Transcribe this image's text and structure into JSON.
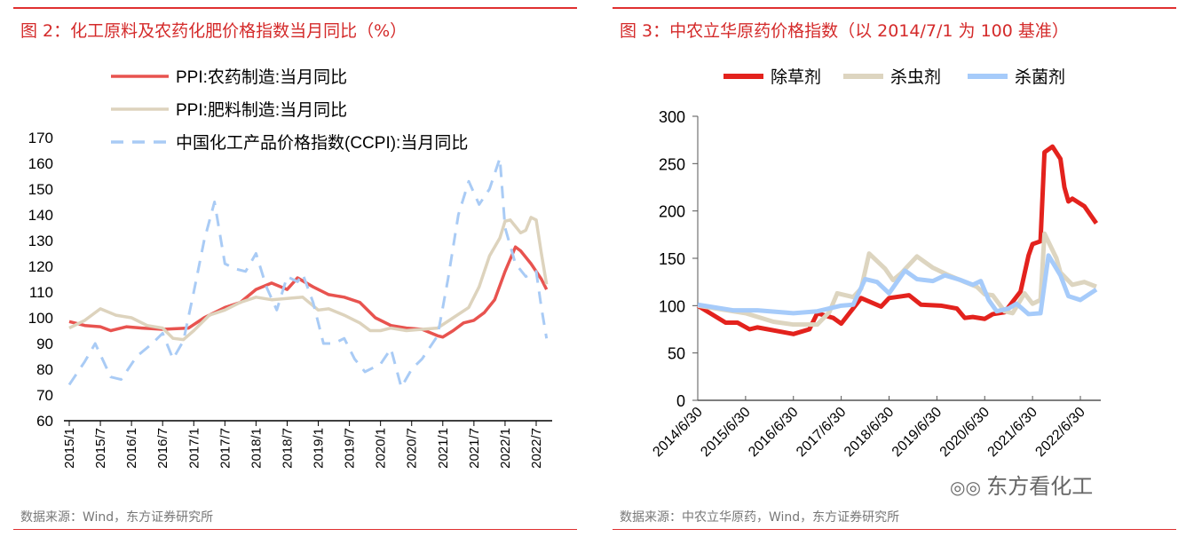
{
  "chart_data": [
    {
      "type": "line",
      "title": "图 2：化工原料及农药化肥价格指数当月同比（%）",
      "source": "数据来源：Wind，东方证券研究所",
      "ylim": [
        60,
        170
      ],
      "yticks": [
        60,
        70,
        80,
        90,
        100,
        110,
        120,
        130,
        140,
        150,
        160,
        170
      ],
      "xticks": [
        "2015/1",
        "2015/7",
        "2016/1",
        "2016/7",
        "2017/1",
        "2017/7",
        "2018/1",
        "2018/7",
        "2019/1",
        "2019/7",
        "2020/1",
        "2020/7",
        "2021/1",
        "2021/7",
        "2022/1",
        "2022/7"
      ],
      "legend": "top-left",
      "grid": false,
      "series": [
        {
          "name": "PPI:农药制造:当月同比",
          "color": "#e8534f",
          "style": "solid",
          "x": [
            "2015-01",
            "2015-04",
            "2015-07",
            "2015-09",
            "2015-12",
            "2016-03",
            "2016-07",
            "2016-12",
            "2017-03",
            "2017-07",
            "2017-10",
            "2018-01",
            "2018-04",
            "2018-07",
            "2018-09",
            "2018-12",
            "2019-03",
            "2019-06",
            "2019-09",
            "2019-12",
            "2020-03",
            "2020-06",
            "2020-09",
            "2020-12",
            "2021-01",
            "2021-03",
            "2021-05",
            "2021-07",
            "2021-09",
            "2021-11",
            "2022-01",
            "2022-03",
            "2022-04",
            "2022-06",
            "2022-08",
            "2022-09"
          ],
          "y": [
            98.5,
            97,
            96.5,
            95,
            96.5,
            96,
            95.5,
            96,
            100,
            104,
            106,
            111,
            113.5,
            111,
            115.5,
            112,
            109,
            108,
            106,
            100,
            97,
            96,
            95.5,
            93,
            92.5,
            95,
            98,
            99,
            102,
            107,
            118,
            127.5,
            126,
            121,
            115,
            111
          ]
        },
        {
          "name": "PPI:肥料制造:当月同比",
          "color": "#ddd3bd",
          "style": "solid",
          "x": [
            "2015-01",
            "2015-04",
            "2015-07",
            "2015-10",
            "2016-01",
            "2016-04",
            "2016-07",
            "2016-09",
            "2016-11",
            "2017-01",
            "2017-04",
            "2017-07",
            "2017-10",
            "2018-01",
            "2018-04",
            "2018-07",
            "2018-10",
            "2019-01",
            "2019-03",
            "2019-06",
            "2019-09",
            "2019-11",
            "2020-01",
            "2020-03",
            "2020-06",
            "2020-09",
            "2020-12",
            "2021-03",
            "2021-06",
            "2021-08",
            "2021-10",
            "2021-12",
            "2022-01",
            "2022-02",
            "2022-04",
            "2022-05",
            "2022-06",
            "2022-07",
            "2022-08",
            "2022-09"
          ],
          "y": [
            96,
            99,
            103.5,
            101,
            100,
            97,
            96,
            92,
            91.5,
            95,
            101,
            103,
            106,
            108,
            107,
            107.5,
            108,
            103,
            103.5,
            101,
            98,
            95,
            95,
            96,
            95,
            95.5,
            96,
            100,
            104,
            112,
            124,
            131,
            137.5,
            138,
            133,
            134,
            139,
            138,
            125,
            113
          ]
        },
        {
          "name": "中国化工产品价格指数(CCPI):当月同比",
          "color": "#a9cbf5",
          "style": "dashed",
          "x": [
            "2015-01",
            "2015-04",
            "2015-06",
            "2015-09",
            "2015-11",
            "2016-02",
            "2016-05",
            "2016-07",
            "2016-09",
            "2016-11",
            "2017-01",
            "2017-03",
            "2017-05",
            "2017-07",
            "2017-09",
            "2017-11",
            "2018-01",
            "2018-03",
            "2018-05",
            "2018-07",
            "2018-09",
            "2018-10",
            "2018-12",
            "2019-02",
            "2019-04",
            "2019-06",
            "2019-08",
            "2019-10",
            "2020-01",
            "2020-03",
            "2020-05",
            "2020-07",
            "2020-09",
            "2020-12",
            "2021-02",
            "2021-04",
            "2021-06",
            "2021-08",
            "2021-10",
            "2021-12",
            "2022-01",
            "2022-03",
            "2022-05",
            "2022-07",
            "2022-08",
            "2022-09"
          ],
          "y": [
            74,
            83,
            90,
            77,
            76,
            85,
            90,
            94,
            84,
            91,
            110,
            130,
            145,
            121,
            119,
            118,
            125,
            112,
            103,
            116,
            114,
            117,
            106,
            90,
            90,
            92,
            84,
            79,
            82,
            88,
            73,
            80,
            84,
            93,
            115,
            140,
            153,
            144,
            150,
            162,
            135,
            121,
            116,
            118,
            104,
            92
          ]
        }
      ]
    },
    {
      "type": "line",
      "title": "图 3：中农立华原药价格指数（以 2014/7/1 为 100 基准）",
      "source": "数据来源：中农立华原药，Wind，东方证券研究所",
      "ylim": [
        0,
        300
      ],
      "yticks": [
        0,
        50,
        100,
        150,
        200,
        250,
        300
      ],
      "xticks": [
        "2014/6/30",
        "2015/6/30",
        "2016/6/30",
        "2017/6/30",
        "2018/6/30",
        "2019/6/30",
        "2020/6/30",
        "2021/6/30",
        "2022/6/30"
      ],
      "legend": "top",
      "grid": false,
      "series": [
        {
          "name": "除草剂",
          "color": "#e3221d",
          "x": [
            "2014-06",
            "2015-01",
            "2015-04",
            "2015-07",
            "2015-09",
            "2016-06",
            "2016-10",
            "2016-12",
            "2017-04",
            "2017-06",
            "2017-11",
            "2018-04",
            "2018-06",
            "2018-11",
            "2019-02",
            "2019-07",
            "2019-11",
            "2020-01",
            "2020-03",
            "2020-06",
            "2020-08",
            "2020-11",
            "2021-01",
            "2021-03",
            "2021-05",
            "2021-06",
            "2021-08",
            "2021-09",
            "2021-11",
            "2022-01",
            "2022-02",
            "2022-03",
            "2022-04",
            "2022-07",
            "2022-10"
          ],
          "y": [
            100,
            82,
            82,
            75,
            77,
            70,
            75,
            92,
            87,
            81,
            108,
            99,
            108,
            111,
            101,
            100,
            97,
            87,
            88,
            86,
            91,
            93,
            104,
            115,
            153,
            165,
            168,
            262,
            268,
            255,
            225,
            210,
            213,
            205,
            187
          ]
        },
        {
          "name": "杀虫剂",
          "color": "#ddd5c0",
          "x": [
            "2014-06",
            "2015-06",
            "2016-01",
            "2016-06",
            "2016-12",
            "2017-03",
            "2017-05",
            "2017-09",
            "2017-11",
            "2018-01",
            "2018-05",
            "2018-07",
            "2018-09",
            "2019-01",
            "2019-05",
            "2019-09",
            "2020-01",
            "2020-04",
            "2020-06",
            "2020-08",
            "2020-11",
            "2021-01",
            "2021-04",
            "2021-06",
            "2021-08",
            "2021-09",
            "2021-12",
            "2022-01",
            "2022-04",
            "2022-07",
            "2022-10"
          ],
          "y": [
            100,
            92,
            83,
            80,
            80,
            93,
            113,
            109,
            118,
            155,
            139,
            127,
            134,
            152,
            140,
            132,
            125,
            120,
            112,
            111,
            94,
            92,
            113,
            102,
            106,
            176,
            150,
            135,
            122,
            125,
            120
          ]
        },
        {
          "name": "杀菌剂",
          "color": "#a6cbfa",
          "x": [
            "2014-06",
            "2015-03",
            "2015-09",
            "2016-06",
            "2016-12",
            "2017-06",
            "2017-09",
            "2017-12",
            "2018-03",
            "2018-06",
            "2018-10",
            "2019-01",
            "2019-05",
            "2019-08",
            "2019-12",
            "2020-03",
            "2020-05",
            "2020-07",
            "2020-09",
            "2020-12",
            "2021-02",
            "2021-05",
            "2021-08",
            "2021-10",
            "2022-01",
            "2022-03",
            "2022-06",
            "2022-10"
          ],
          "y": [
            101,
            95,
            95,
            92,
            94,
            100,
            101,
            128,
            125,
            113,
            137,
            128,
            126,
            132,
            127,
            122,
            126,
            106,
            94,
            97,
            102,
            91,
            92,
            153,
            132,
            110,
            106,
            117
          ]
        }
      ]
    }
  ],
  "watermark": "东方看化工"
}
